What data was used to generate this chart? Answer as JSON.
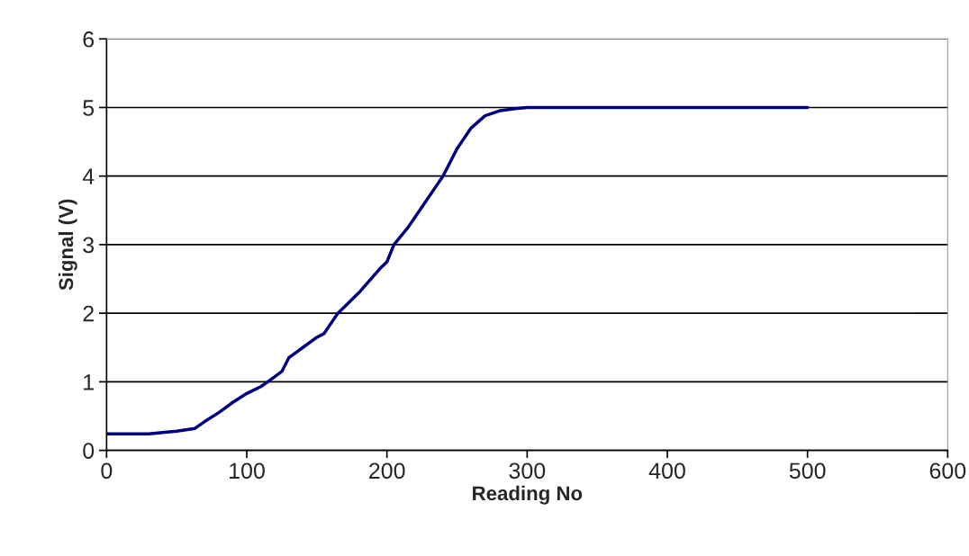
{
  "chart_data": {
    "type": "line",
    "xlabel": "Reading No",
    "ylabel": "Signal (V)",
    "x": [
      0,
      30,
      50,
      63,
      70,
      80,
      90,
      100,
      110,
      115,
      125,
      130,
      140,
      150,
      155,
      165,
      180,
      195,
      200,
      205,
      215,
      225,
      235,
      240,
      250,
      260,
      270,
      280,
      290,
      300,
      400,
      500
    ],
    "series": [
      {
        "color": "#000080",
        "values": [
          0.24,
          0.24,
          0.28,
          0.32,
          0.42,
          0.55,
          0.7,
          0.83,
          0.93,
          1.0,
          1.15,
          1.35,
          1.5,
          1.65,
          1.7,
          2.0,
          2.3,
          2.65,
          2.75,
          3.0,
          3.25,
          3.55,
          3.85,
          4.0,
          4.4,
          4.7,
          4.88,
          4.95,
          4.98,
          5.0,
          5.0,
          5.0
        ]
      }
    ],
    "xlim": [
      0,
      600
    ],
    "xticks": [
      0,
      100,
      200,
      300,
      400,
      500,
      600
    ],
    "ylim": [
      0,
      6
    ],
    "yticks": [
      0,
      1,
      2,
      3,
      4,
      5,
      6
    ],
    "grid": "y",
    "legend": false,
    "marker": "none",
    "line_style": "solid"
  }
}
